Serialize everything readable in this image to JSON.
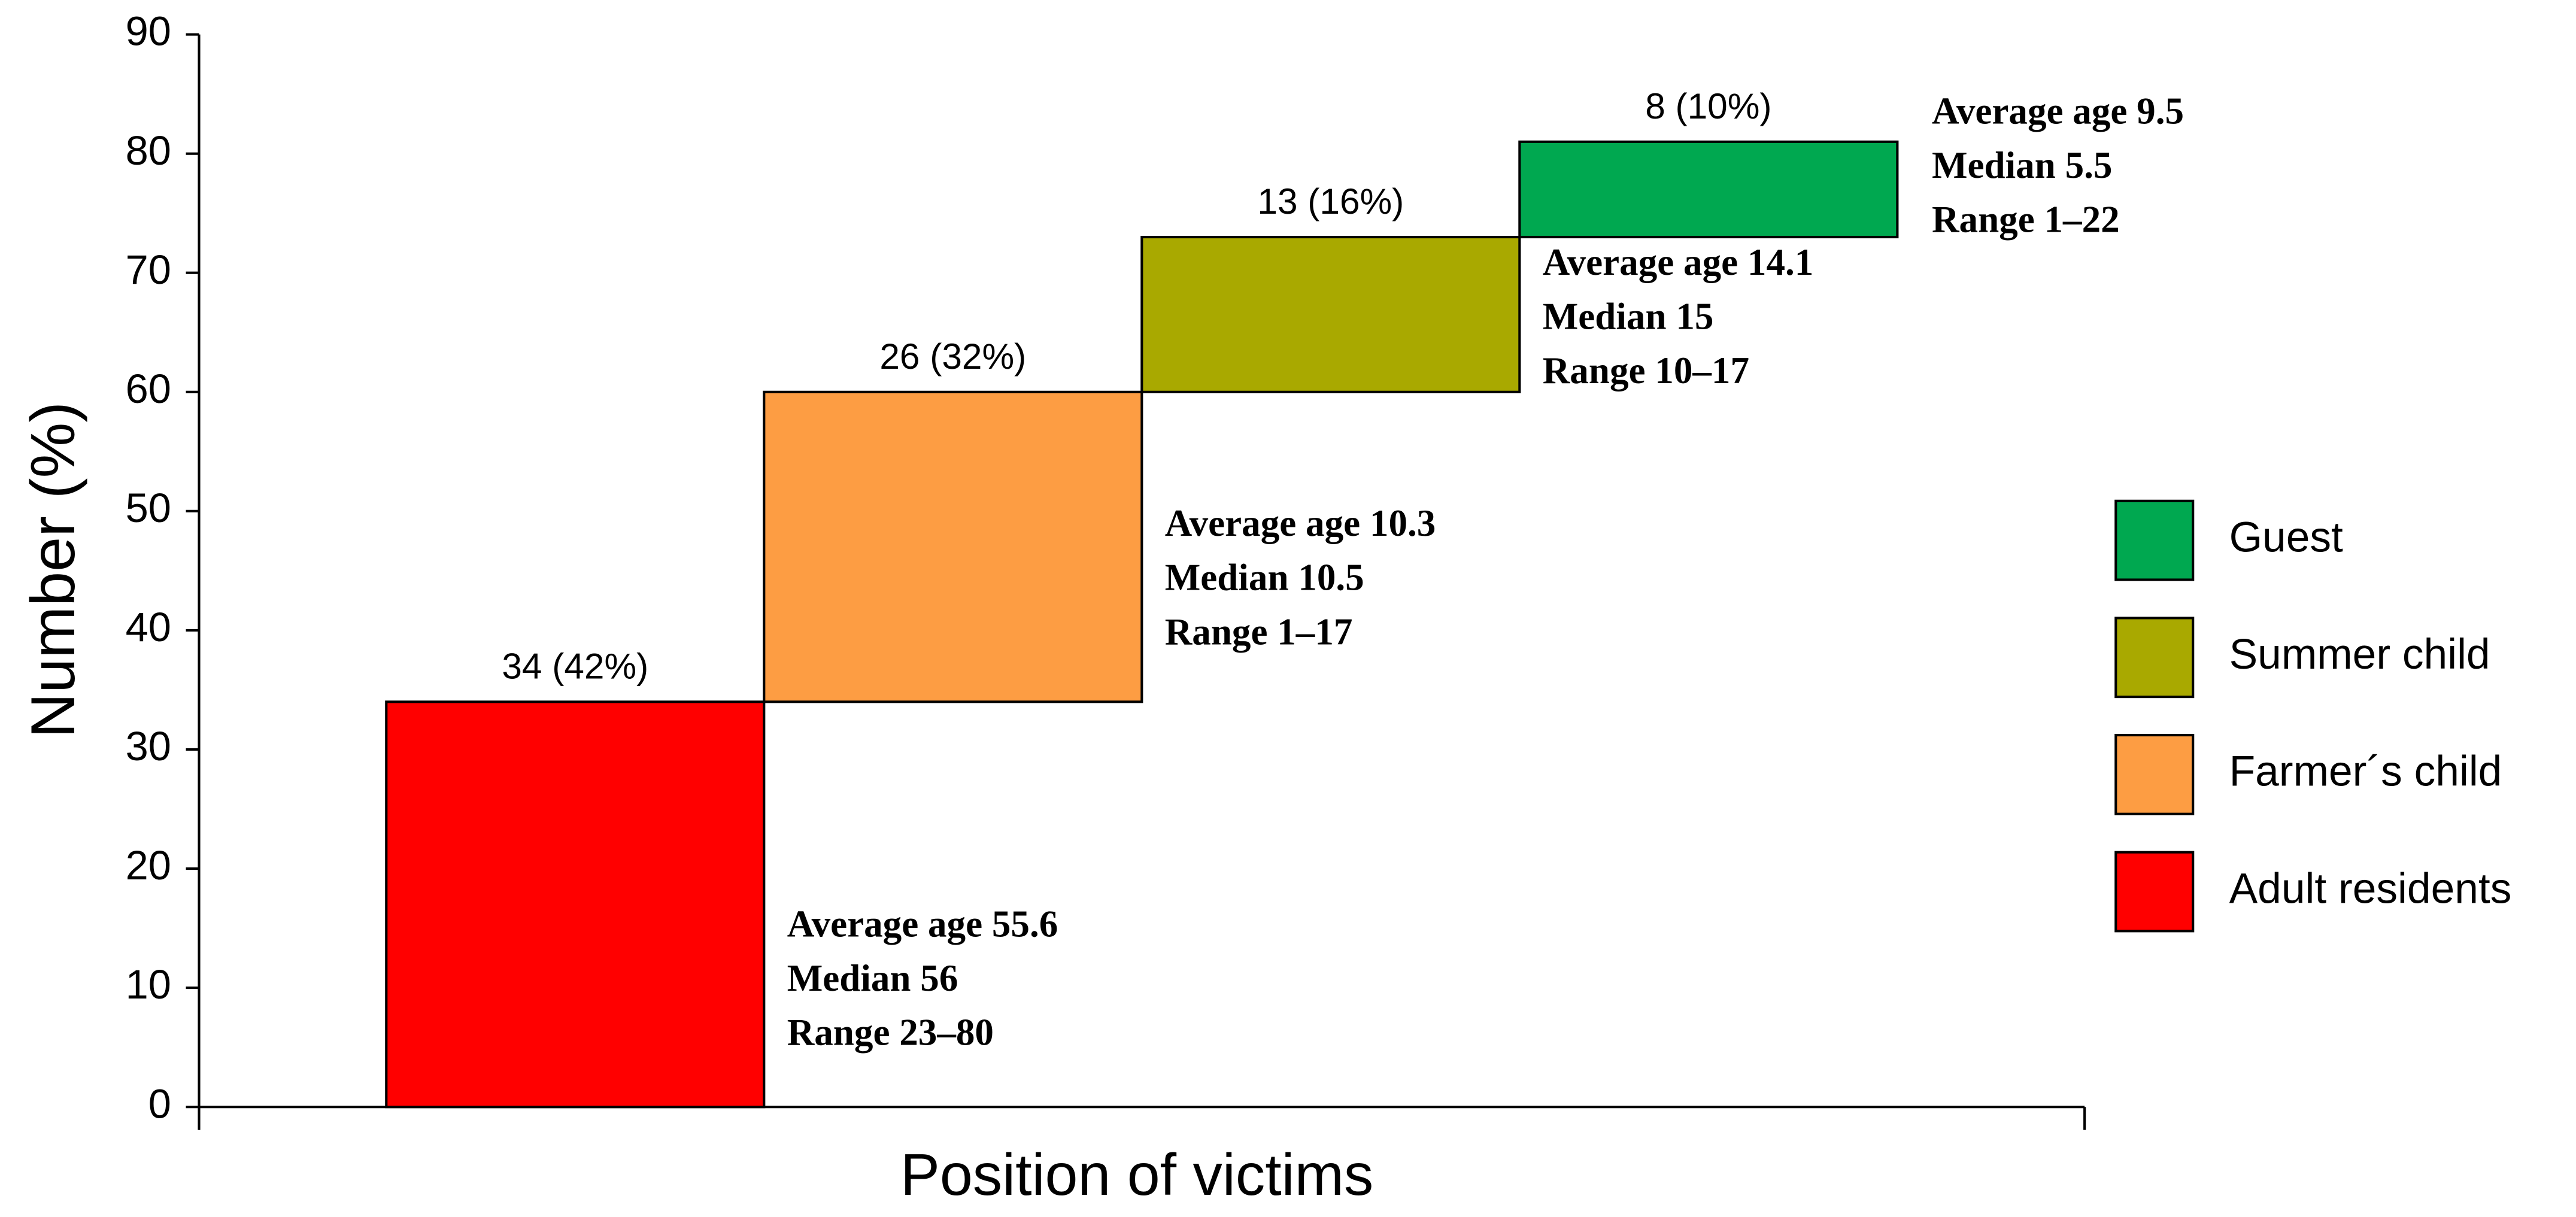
{
  "chart_data": {
    "type": "waterfall",
    "y_label": "Number (%)",
    "x_label": "Position of victims",
    "ylim": [
      0,
      90
    ],
    "yticks": [
      0,
      10,
      20,
      30,
      40,
      50,
      60,
      70,
      80,
      90
    ],
    "legend": "right",
    "series": [
      {
        "name": "Adult residents",
        "color": "#ff0000",
        "values": [
          34
        ],
        "value_labels": [
          "34 (42%)"
        ],
        "annotations": [
          "Average age 55.6",
          "Median 56",
          "Range 23–80"
        ]
      },
      {
        "name": "Farmer´s child",
        "color": "#fd9d43",
        "values": [
          26
        ],
        "value_labels": [
          "26 (32%)"
        ],
        "annotations": [
          "Average age 10.3",
          "Median 10.5",
          "Range 1–17"
        ]
      },
      {
        "name": "Summer child",
        "color": "#a9a900",
        "values": [
          13
        ],
        "value_labels": [
          "13 (16%)"
        ],
        "annotations": [
          "Average age 14.1",
          "Median 15",
          "Range 10–17"
        ]
      },
      {
        "name": "Guest",
        "color": "#00a850",
        "values": [
          8
        ],
        "value_labels": [
          "8 (10%)"
        ],
        "annotations": [
          "Average age 9.5",
          "Median 5.5",
          "Range 1–22"
        ]
      }
    ]
  }
}
